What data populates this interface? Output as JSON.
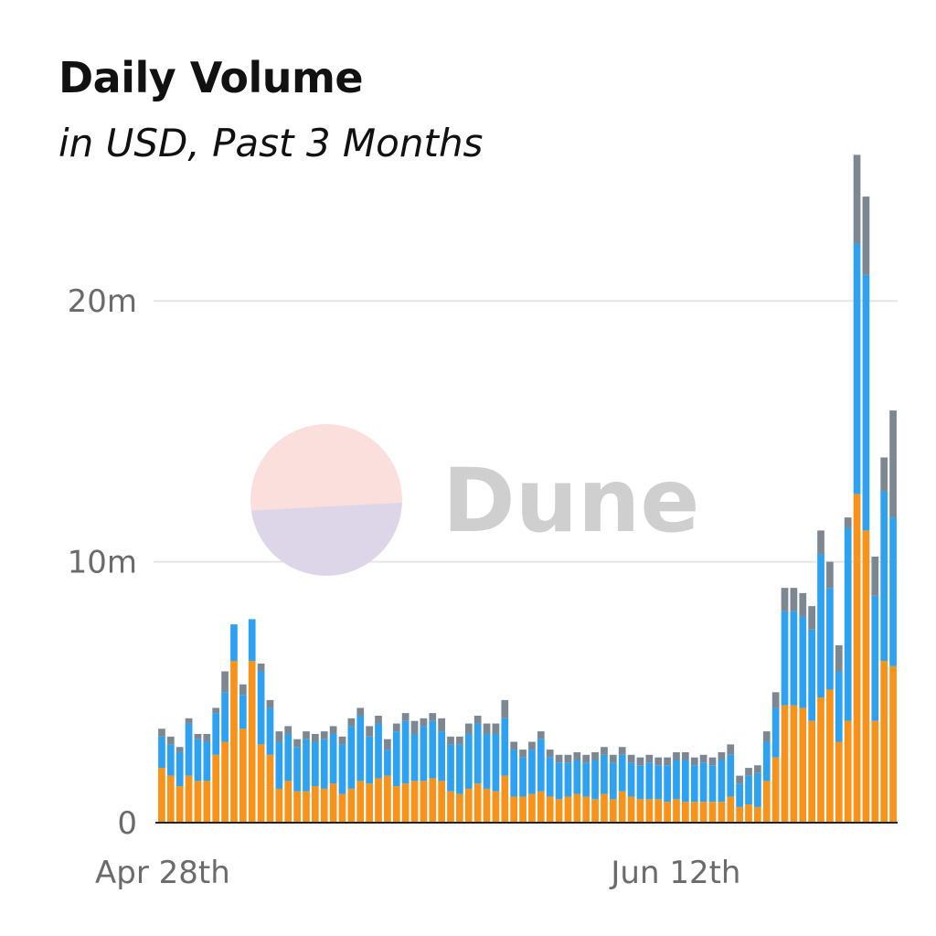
{
  "header": {
    "title": "Daily Volume",
    "subtitle": "in USD, Past 3 Months"
  },
  "watermark": {
    "text": "Dune",
    "colors": [
      "#fadcd8",
      "#d9d5ea"
    ]
  },
  "chart_data": {
    "type": "bar",
    "stacked": true,
    "title": "Daily Volume",
    "subtitle": "in USD, Past 3 Months",
    "xlabel": "",
    "ylabel": "",
    "ylim": [
      0,
      26000000
    ],
    "y_ticks": [
      {
        "value": 0,
        "label": "0"
      },
      {
        "value": 10000000,
        "label": "10m"
      },
      {
        "value": 20000000,
        "label": "20m"
      }
    ],
    "x_ticks": [
      {
        "index": 0,
        "label": "Apr 28th"
      },
      {
        "index": 45,
        "label": "Jun 12th"
      }
    ],
    "grid": true,
    "legend": "none",
    "colors": [
      "#f7931a",
      "#2ea1f0",
      "#7d8792"
    ],
    "series": [
      {
        "values": [
          2100000,
          1800000,
          1400000,
          1800000,
          1600000,
          1600000,
          2600000,
          3100000,
          6200000,
          3600000,
          6200000,
          3000000,
          2600000,
          1300000,
          1600000,
          1200000,
          1200000,
          1400000,
          1300000,
          1500000,
          1100000,
          1300000,
          1600000,
          1500000,
          1700000,
          1800000,
          1400000,
          1500000,
          1600000,
          1600000,
          1700000,
          1600000,
          1200000,
          1100000,
          1300000,
          1500000,
          1300000,
          1200000,
          1800000,
          1000000,
          1000000,
          1100000,
          1200000,
          1000000,
          900000,
          1000000,
          1100000,
          1000000,
          900000,
          1100000,
          900000,
          1200000,
          1000000,
          900000,
          900000,
          900000,
          800000,
          900000,
          800000,
          800000,
          800000,
          800000,
          800000,
          1000000,
          600000,
          700000,
          600000,
          1600000,
          2500000,
          4500000,
          4500000,
          4400000,
          3900000,
          4800000,
          5100000,
          3100000,
          3900000,
          12600000,
          11200000,
          3900000,
          6200000,
          6000000
        ],
        "colors_key": 0
      },
      {
        "values": [
          1200000,
          1200000,
          1300000,
          2000000,
          1600000,
          1500000,
          1600000,
          1900000,
          1400000,
          1300000,
          1600000,
          2800000,
          1800000,
          1800000,
          1800000,
          1700000,
          2000000,
          1700000,
          1900000,
          1900000,
          1900000,
          2400000,
          2500000,
          1800000,
          2100000,
          1000000,
          2100000,
          2400000,
          1800000,
          2100000,
          2200000,
          1900000,
          1800000,
          1900000,
          2100000,
          2300000,
          2100000,
          2200000,
          2200000,
          1800000,
          1500000,
          1700000,
          2000000,
          1500000,
          1400000,
          1300000,
          1300000,
          1300000,
          1500000,
          1500000,
          1400000,
          1400000,
          1300000,
          1300000,
          1400000,
          1300000,
          1400000,
          1500000,
          1600000,
          1400000,
          1500000,
          1400000,
          1600000,
          1600000,
          900000,
          1100000,
          1300000,
          1500000,
          1900000,
          3600000,
          3600000,
          3500000,
          3500000,
          5500000,
          3900000,
          2700000,
          7400000,
          9600000,
          9800000,
          4800000,
          6500000,
          5700000
        ],
        "colors_key": 1
      },
      {
        "values": [
          300000,
          300000,
          200000,
          200000,
          200000,
          300000,
          200000,
          800000,
          0,
          400000,
          0,
          300000,
          300000,
          400000,
          300000,
          300000,
          300000,
          300000,
          300000,
          300000,
          300000,
          300000,
          300000,
          400000,
          300000,
          400000,
          300000,
          300000,
          500000,
          300000,
          300000,
          500000,
          300000,
          300000,
          400000,
          300000,
          400000,
          400000,
          700000,
          300000,
          300000,
          300000,
          300000,
          300000,
          300000,
          300000,
          300000,
          300000,
          300000,
          300000,
          300000,
          300000,
          300000,
          300000,
          300000,
          300000,
          300000,
          300000,
          300000,
          300000,
          300000,
          300000,
          300000,
          400000,
          300000,
          300000,
          300000,
          400000,
          600000,
          900000,
          900000,
          900000,
          900000,
          900000,
          1000000,
          1000000,
          400000,
          3400000,
          3000000,
          1500000,
          1300000,
          4100000
        ],
        "colors_key": 2
      }
    ]
  }
}
